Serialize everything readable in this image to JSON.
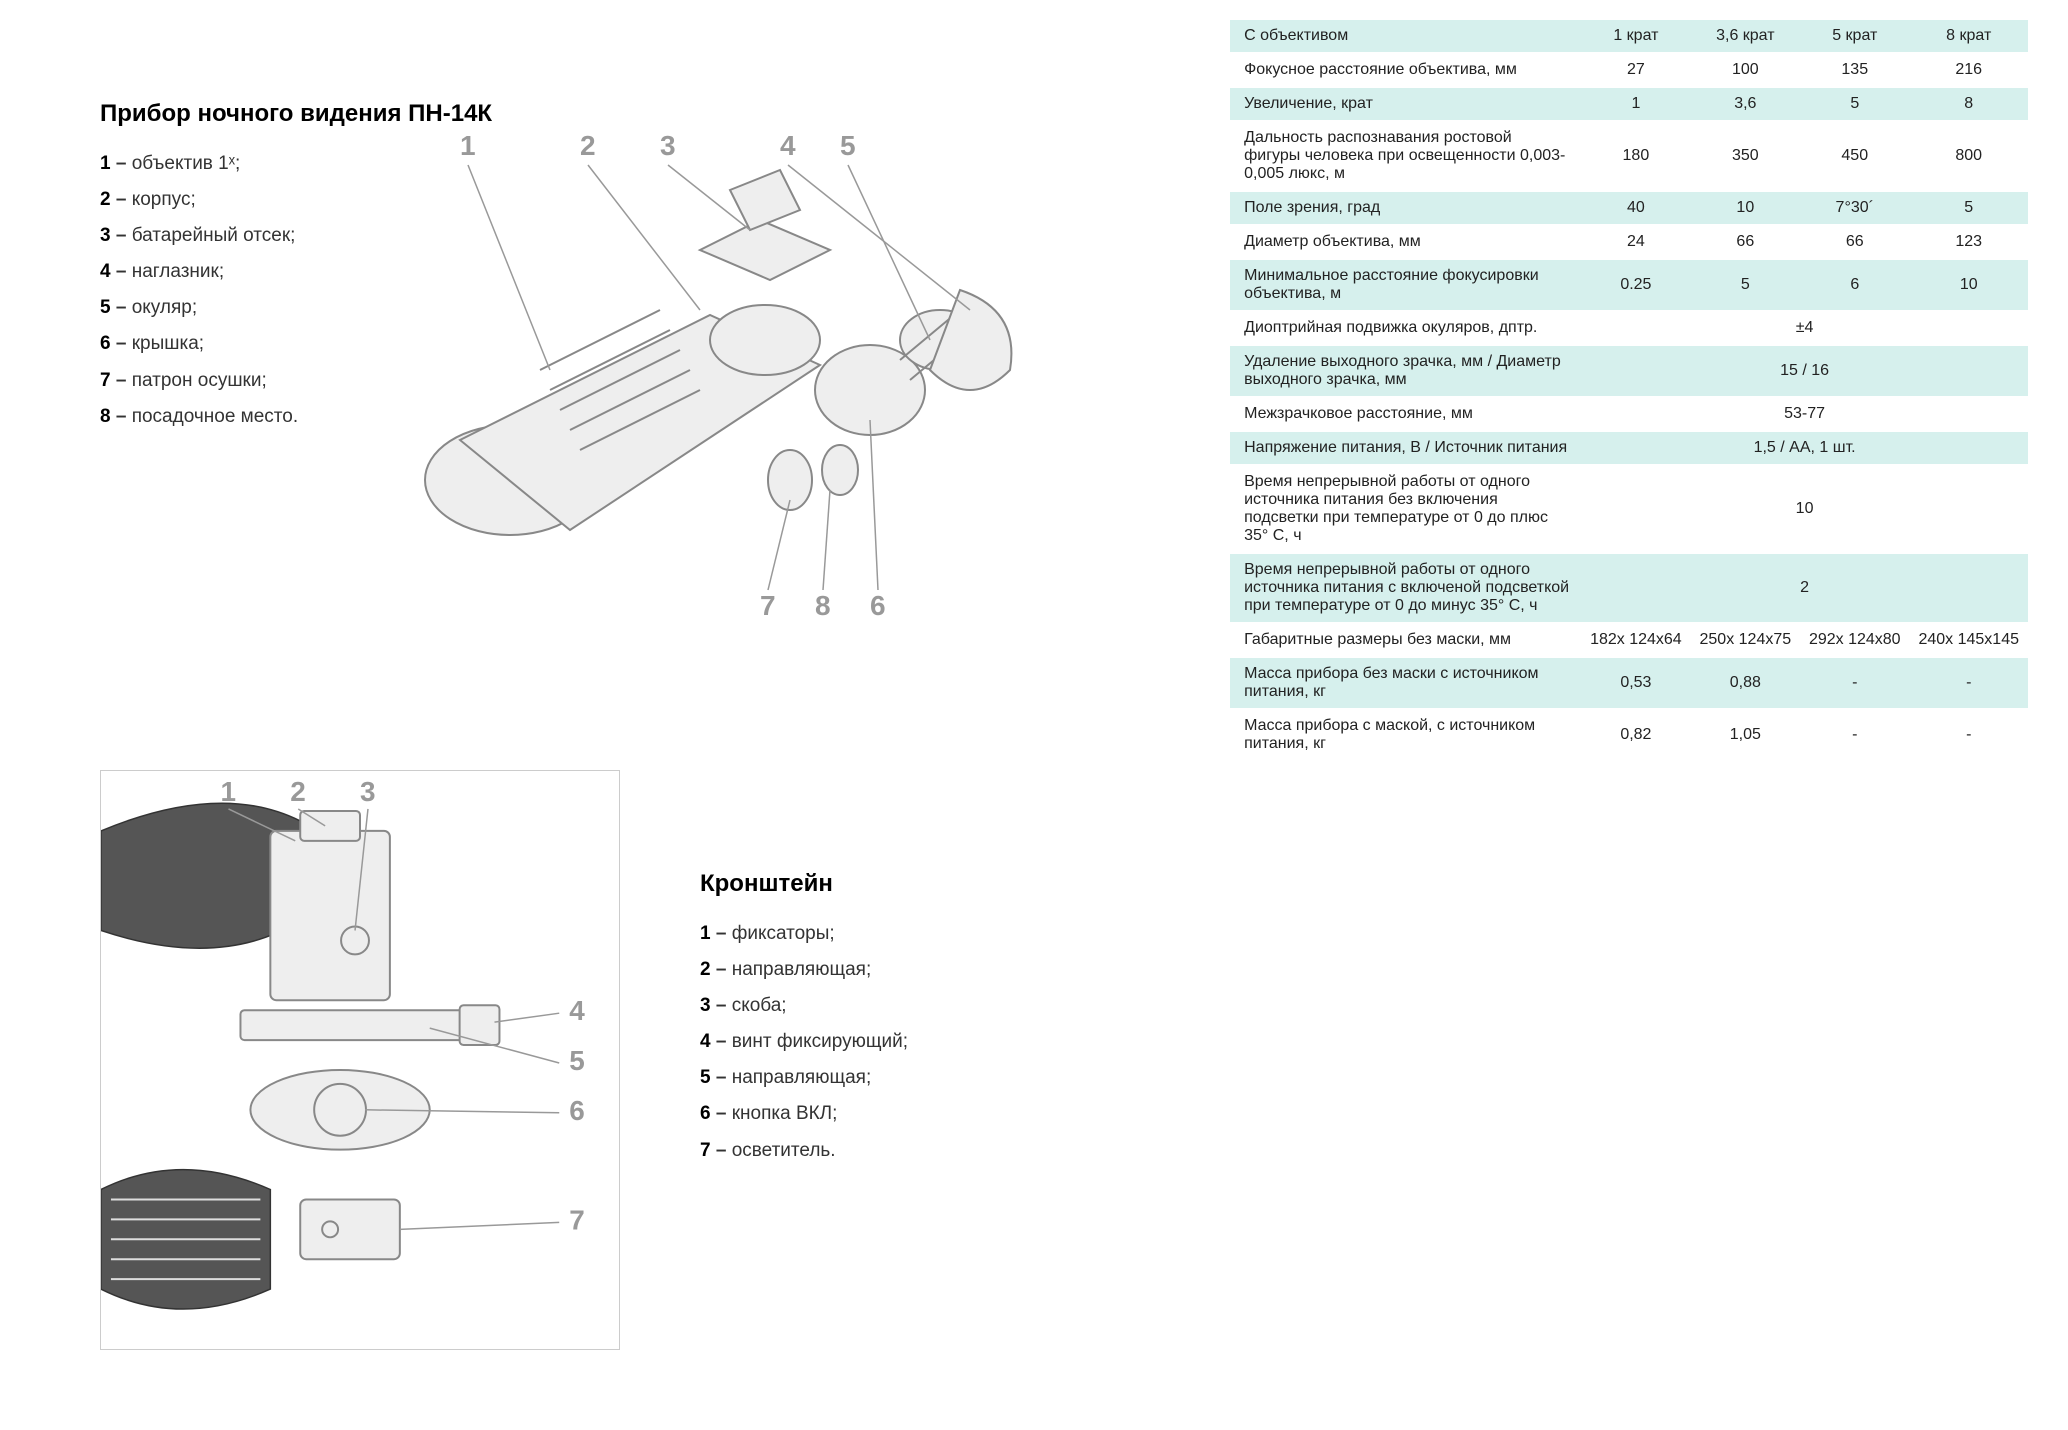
{
  "colors": {
    "row_alt_bg": "#d6f0ed",
    "row_bg": "#ffffff",
    "text": "#333333",
    "callout": "#999999",
    "device_stroke": "#888888",
    "device_fill": "#eeeeee",
    "device_dark": "#555555",
    "border": "#cccccc"
  },
  "typography": {
    "body_fontsize": 18,
    "title_fontsize": 24,
    "table_fontsize": 16,
    "callout_fontsize": 28,
    "font_family": "Verdana, Arial, sans-serif"
  },
  "device": {
    "title": "Прибор ночного видения ПН-14К",
    "legend": [
      {
        "num": "1",
        "sep": " – ",
        "text": "объектив 1ˣ;"
      },
      {
        "num": "2",
        "sep": " – ",
        "text": "корпус;"
      },
      {
        "num": "3",
        "sep": " – ",
        "text": "батарейный отсек;"
      },
      {
        "num": "4",
        "sep": " – ",
        "text": "наглазник;"
      },
      {
        "num": "5",
        "sep": " – ",
        "text": "окуляр;"
      },
      {
        "num": "6",
        "sep": " – ",
        "text": "крышка;"
      },
      {
        "num": "7",
        "sep": " – ",
        "text": "патрон осушки;"
      },
      {
        "num": "8",
        "sep": " –  ",
        "text": "посадочное место."
      }
    ],
    "callouts": [
      "1",
      "2",
      "3",
      "4",
      "5",
      "7",
      "8",
      "6"
    ]
  },
  "bracket": {
    "title": "Кронштейн",
    "legend": [
      {
        "num": "1",
        "sep": " – ",
        "text": "фиксаторы;"
      },
      {
        "num": "2",
        "sep": " – ",
        "text": "направляющая;"
      },
      {
        "num": "3",
        "sep": " – ",
        "text": "скоба;"
      },
      {
        "num": "4",
        "sep": " – ",
        "text": "винт фиксирующий;"
      },
      {
        "num": "5",
        "sep": " – ",
        "text": "направляющая;"
      },
      {
        "num": "6",
        "sep": " – ",
        "text": "кнопка ВКЛ;"
      },
      {
        "num": "7",
        "sep": " – ",
        "text": "осветитель."
      }
    ],
    "callouts": [
      "1",
      "2",
      "3",
      "4",
      "5",
      "6",
      "7"
    ]
  },
  "spec_table": {
    "type": "table",
    "header": {
      "label": "С объективом",
      "cols": [
        "1 крат",
        "3,6 крат",
        "5 крат",
        "8 крат"
      ]
    },
    "rows": [
      {
        "label": "Фокусное расстояние объектива, мм",
        "cells": [
          "27",
          "100",
          "135",
          "216"
        ],
        "merged": false
      },
      {
        "label": "Увеличение, крат",
        "cells": [
          "1",
          "3,6",
          "5",
          "8"
        ],
        "merged": false
      },
      {
        "label": "Дальность распознавания ростовой фигуры человека при освещенности 0,003-0,005 люкс, м",
        "cells": [
          "180",
          "350",
          "450",
          "800"
        ],
        "merged": false
      },
      {
        "label": "Поле зрения, град",
        "cells": [
          "40",
          "10",
          "7°30´",
          "5"
        ],
        "merged": false
      },
      {
        "label": "Диаметр объектива, мм",
        "cells": [
          "24",
          "66",
          "66",
          "123"
        ],
        "merged": false
      },
      {
        "label": "Минимальное расстояние фокусировки объектива, м",
        "cells": [
          "0.25",
          "5",
          "6",
          "10"
        ],
        "merged": false
      },
      {
        "label": "Диоптрийная подвижка окуляров, дптр.",
        "cells": [
          "±4"
        ],
        "merged": true
      },
      {
        "label": "Удаление выходного зрачка, мм / Диаметр выходного зрачка, мм",
        "cells": [
          "15 / 16"
        ],
        "merged": true
      },
      {
        "label": "Межзрачковое расстояние, мм",
        "cells": [
          "53-77"
        ],
        "merged": true
      },
      {
        "label": "Напряжение питания, В / Источник питания",
        "cells": [
          "1,5 / АА, 1 шт."
        ],
        "merged": true
      },
      {
        "label": "Время непрерывной работы от одного источника питания без включения подсветки при температуре от 0 до плюс 35° С, ч",
        "cells": [
          "10"
        ],
        "merged": true
      },
      {
        "label": "Время непрерывной работы от одного источника питания с включеной подсветкой при температуре от 0 до минус 35° С, ч",
        "cells": [
          "2"
        ],
        "merged": true
      },
      {
        "label": "Габаритные размеры без маски, мм",
        "cells": [
          "182x 124x64",
          "250x 124x75",
          "292x 124x80",
          "240x 145x145"
        ],
        "merged": false
      },
      {
        "label": "Масса прибора без маски с источником питания, кг",
        "cells": [
          "0,53",
          "0,88",
          "-",
          "-"
        ],
        "merged": false
      },
      {
        "label": "Масса прибора с маской, с источником питания, кг",
        "cells": [
          "0,82",
          "1,05",
          "-",
          "-"
        ],
        "merged": false
      }
    ]
  }
}
